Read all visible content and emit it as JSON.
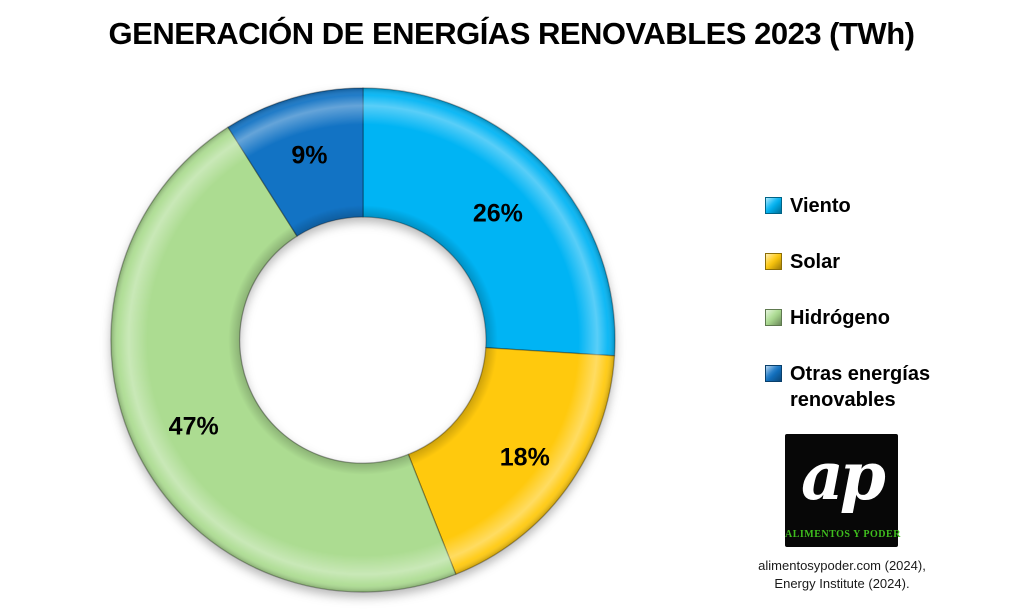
{
  "title": "GENERACIÓN DE ENERGÍAS RENOVABLES 2023 (TWh)",
  "chart_data": {
    "type": "pie",
    "subtype": "donut",
    "title": "GENERACIÓN DE ENERGÍAS RENOVABLES 2023 (TWh)",
    "values_are": "percent",
    "value_suffix": "%",
    "start_angle_deg": 0,
    "direction": "clockwise",
    "donut_hole_ratio": 0.49,
    "legend_position": "right",
    "slices": [
      {
        "label": "Viento",
        "value": 26,
        "data_label": "26%",
        "color": "#00B4F4"
      },
      {
        "label": "Solar",
        "value": 18,
        "data_label": "18%",
        "color": "#FFC90D"
      },
      {
        "label": "Hidrógeno",
        "value": 47,
        "data_label": "47%",
        "color": "#ACDC91"
      },
      {
        "label": "Otras energías renovables",
        "value": 9,
        "data_label": "9%",
        "color": "#1273C4"
      }
    ]
  },
  "branding": {
    "logo_monogram": "ap",
    "logo_caption": "ALIMENTOS Y PODER",
    "logo_caption_color": "#3FBE1E",
    "logo_background": "#070707"
  },
  "source": {
    "line1": "alimentosypoder.com (2024),",
    "line2": "Energy Institute (2024)."
  }
}
